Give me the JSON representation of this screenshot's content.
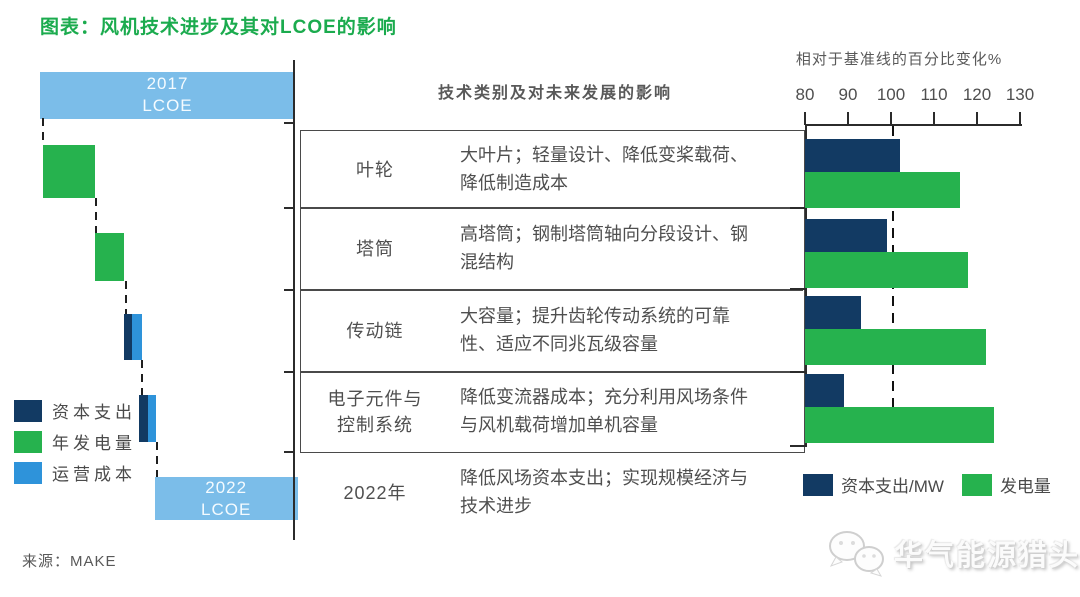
{
  "title": "图表：风机技术进步及其对LCOE的影响",
  "source": "来源：MAKE",
  "watermark": {
    "text": "华气能源猎头",
    "logo": "wechat-bubbles-icon"
  },
  "colors": {
    "navy": "#123A63",
    "green": "#26B24E",
    "blue": "#2E93DA",
    "lightblue": "#7BBDE9",
    "title_green": "#1BAB4E"
  },
  "waterfall": {
    "start_bar": {
      "line1": "2017",
      "line2": "LCOE"
    },
    "end_bar": {
      "line1": "2022",
      "line2": "LCOE"
    },
    "legend": [
      {
        "label": "资本支出",
        "color_key": "navy"
      },
      {
        "label": "年发电量",
        "color_key": "green"
      },
      {
        "label": "运营成本",
        "color_key": "blue"
      }
    ]
  },
  "table": {
    "header": "技术类别及对未来发展的影响",
    "rows": [
      {
        "category": "叶轮",
        "description": "大叶片；轻量设计、降低变桨载荷、降低制造成本"
      },
      {
        "category": "塔筒",
        "description": "高塔筒；钢制塔筒轴向分段设计、钢混结构"
      },
      {
        "category": "传动链",
        "description": "大容量；提升齿轮传动系统的可靠性、适应不同兆瓦级容量"
      },
      {
        "category": "电子元件与控制系统",
        "description": "降低变流器成本；充分利用风场条件与风机载荷增加单机容量"
      },
      {
        "category": "2022年",
        "description": "降低风场资本支出；实现规模经济与技术进步"
      }
    ]
  },
  "bar_chart": {
    "axis_title": "相对于基准线的百分比变化%",
    "legend": [
      {
        "label": "资本支出/MW",
        "color_key": "navy"
      },
      {
        "label": "发电量",
        "color_key": "green"
      }
    ]
  },
  "chart_data": [
    {
      "type": "bar",
      "orientation": "horizontal",
      "title": "相对于基准线的百分比变化%",
      "categories": [
        "叶轮",
        "塔筒",
        "传动链",
        "电子元件与控制系统"
      ],
      "series": [
        {
          "name": "资本支出/MW",
          "color_key": "navy",
          "values": [
            102,
            99,
            93,
            89
          ]
        },
        {
          "name": "发电量",
          "color_key": "green",
          "values": [
            116,
            118,
            122,
            124
          ]
        }
      ],
      "xlim": [
        80,
        130
      ],
      "ticks": [
        80,
        90,
        100,
        110,
        120,
        130
      ],
      "baseline": 100,
      "grid": false,
      "legend_position": "bottom-right"
    },
    {
      "type": "waterfall",
      "orientation": "horizontal-steps",
      "start": {
        "label": "2017 LCOE",
        "value": 100
      },
      "end": {
        "label": "2022 LCOE",
        "value": 55
      },
      "steps": [
        {
          "name": "年发电量（叶轮）",
          "color_key": "green",
          "row": 1,
          "from": 1,
          "to": 21.5
        },
        {
          "name": "年发电量（塔筒）",
          "color_key": "green",
          "row": 2,
          "from": 21.5,
          "to": 33
        },
        {
          "name": "资本支出（传动链）",
          "color_key": "navy",
          "row": 3,
          "from": 33,
          "to": 36
        },
        {
          "name": "运营成本（传动链）",
          "color_key": "blue",
          "row": 3,
          "from": 36,
          "to": 40
        },
        {
          "name": "资本支出（电子元件与控制系统）",
          "color_key": "navy",
          "row": 4,
          "from": 39,
          "to": 42.5
        },
        {
          "name": "运营成本（电子元件与控制系统）",
          "color_key": "blue",
          "row": 4,
          "from": 42.5,
          "to": 45.5
        }
      ]
    }
  ]
}
